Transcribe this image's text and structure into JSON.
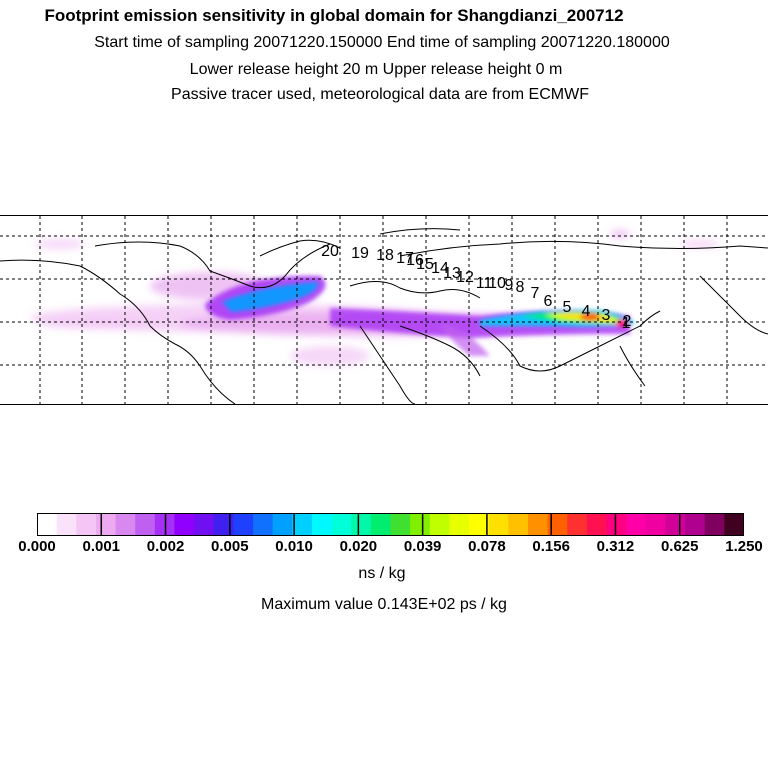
{
  "header": {
    "title": "Footprint emission sensitivity in global domain for Shangdianzi_200712",
    "sampling": "Start time of sampling 20071220.150000     End time of sampling 20071220.180000",
    "release": "Lower release height   20 m          Upper release height    0 m",
    "info": "Passive tracer used, meteorological data are from ECMWF"
  },
  "map": {
    "trajectory_labels": [
      "1",
      "2",
      "3",
      "4",
      "5",
      "6",
      "7",
      "8",
      "9",
      "10",
      "11",
      "12",
      "13",
      "14",
      "15",
      "16",
      "17",
      "18",
      "19",
      "20"
    ]
  },
  "colorbar": {
    "colors": [
      "#ffffff",
      "#fbe2fb",
      "#f5c6f5",
      "#eeaaf0",
      "#d888ee",
      "#c060f0",
      "#a630f5",
      "#9000ff",
      "#7010f0",
      "#4020f0",
      "#2040ff",
      "#1070ff",
      "#00a0ff",
      "#00d0ff",
      "#00f8ff",
      "#00ffd8",
      "#00f8a8",
      "#00ee70",
      "#40e030",
      "#80f000",
      "#c0ff00",
      "#e8ff00",
      "#ffff00",
      "#ffe000",
      "#ffc000",
      "#ff9000",
      "#ff6000",
      "#ff3030",
      "#ff1050",
      "#ff0080",
      "#ff00a8",
      "#f000a0",
      "#d00098",
      "#b00090",
      "#800060",
      "#400020"
    ],
    "tick_labels": [
      "0.000",
      "0.001",
      "0.002",
      "0.005",
      "0.010",
      "0.020",
      "0.039",
      "0.078",
      "0.156",
      "0.312",
      "0.625",
      "1.250"
    ]
  },
  "units": "ns / kg",
  "max_value": "Maximum value  0.143E+02 ps / kg"
}
